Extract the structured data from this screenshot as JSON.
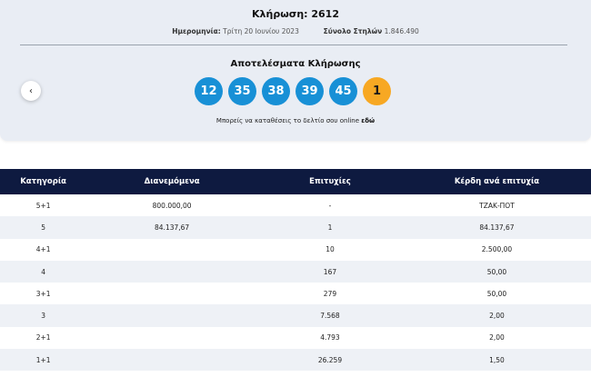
{
  "draw": {
    "title": "Κλήρωση: 2612",
    "date_label": "Ημερομηνία:",
    "date_value": "Τρίτη 20 Ιουνίου 2023",
    "columns_label": "Σύνολο Στηλών",
    "columns_value": "1.846.490"
  },
  "results": {
    "title": "Αποτελέσματα Κλήρωσης",
    "numbers": [
      "12",
      "35",
      "38",
      "39",
      "45"
    ],
    "joker": "1"
  },
  "promo": {
    "text": "Μπορείς να καταθέσεις το δελτίο σου online",
    "link": "εδώ"
  },
  "nav": {
    "back_icon": "‹"
  },
  "table": {
    "headers": [
      "Κατηγορία",
      "Διανεμόμενα",
      "Επιτυχίες",
      "Κέρδη ανά επιτυχία"
    ],
    "rows": [
      [
        "5+1",
        "800.000,00",
        "-",
        "ΤΖΑΚ-ΠΟΤ"
      ],
      [
        "5",
        "84.137,67",
        "1",
        "84.137,67"
      ],
      [
        "4+1",
        "",
        "10",
        "2.500,00"
      ],
      [
        "4",
        "",
        "167",
        "50,00"
      ],
      [
        "3+1",
        "",
        "279",
        "50,00"
      ],
      [
        "3",
        "",
        "7.568",
        "2,00"
      ],
      [
        "2+1",
        "",
        "4.793",
        "2,00"
      ],
      [
        "1+1",
        "",
        "26.259",
        "1,50"
      ]
    ]
  },
  "colors": {
    "ball": "#1890d6",
    "joker": "#f7a823",
    "table_header": "#0e1a40"
  }
}
